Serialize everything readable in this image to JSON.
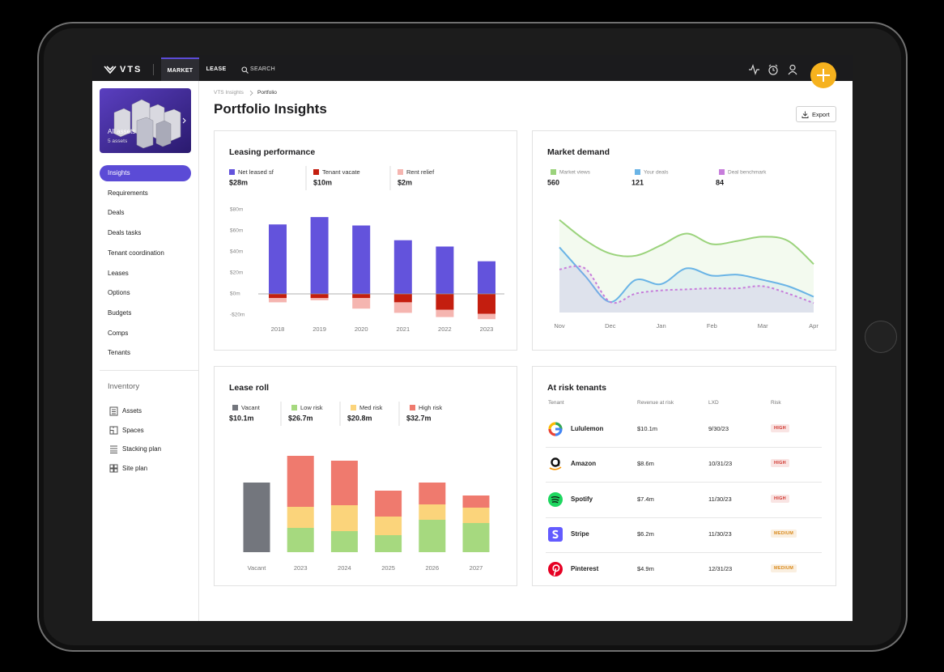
{
  "top_nav": {
    "brand": "VTS",
    "tabs": [
      "MARKET",
      "LEASE"
    ],
    "search": "SEARCH"
  },
  "sidebar": {
    "asset_card": {
      "title": "All assets",
      "subtitle": "5 assets"
    },
    "nav": [
      "Insights",
      "Requirements",
      "Deals",
      "Deals tasks",
      "Tenant coordination",
      "Leases",
      "Options",
      "Budgets",
      "Comps",
      "Tenants"
    ],
    "inventory": {
      "title": "Inventory",
      "items": [
        "Assets",
        "Spaces",
        "Stacking plan",
        "Site plan"
      ]
    }
  },
  "breadcrumb": [
    "VTS Insights",
    "Portfolio"
  ],
  "page_title": "Portfolio Insights",
  "export": "Export",
  "chart_data": [
    {
      "type": "bar",
      "stacked": true,
      "title": "Leasing performance",
      "categories": [
        "2018",
        "2019",
        "2020",
        "2021",
        "2022",
        "2023"
      ],
      "series": [
        {
          "name": "Net leased sf",
          "color": "#6353dc",
          "total": "$28m",
          "values": [
            66,
            73,
            65,
            51,
            45,
            31
          ]
        },
        {
          "name": "Tenant vacate",
          "color": "#c41e0f",
          "total": "$10m",
          "values": [
            -4,
            -4,
            -4,
            -8,
            -15,
            -19
          ]
        },
        {
          "name": "Rent relief",
          "color": "#f5b5b0",
          "total": "$2m",
          "values": [
            -4,
            -2,
            -10,
            -10,
            -7,
            -5
          ]
        }
      ],
      "ylim": [
        -25,
        85
      ],
      "yticks": [
        {
          "value": 80,
          "label": "$80m"
        },
        {
          "value": 60,
          "label": "$60m"
        },
        {
          "value": 40,
          "label": "$40m"
        },
        {
          "value": 20,
          "label": "$20m"
        },
        {
          "value": 0,
          "label": "$0m"
        },
        {
          "value": -20,
          "label": "-$20m"
        }
      ]
    },
    {
      "type": "line",
      "title": "Market demand",
      "categories": [
        "Nov",
        null,
        "Dec",
        null,
        "Jan",
        null,
        "Feb",
        null,
        "Mar",
        null,
        "Apr"
      ],
      "series": [
        {
          "name": "Market views",
          "color": "#9bd37c",
          "total": 560,
          "values": [
            88,
            69,
            56,
            54,
            64,
            75,
            65,
            68,
            72,
            68,
            46
          ]
        },
        {
          "name": "Your deals",
          "color": "#6ab4e6",
          "total": 121,
          "values": [
            62,
            35,
            10,
            31,
            27,
            42,
            35,
            36,
            31,
            25,
            15
          ]
        },
        {
          "name": "Deal benchmark",
          "color": "#c77ddb",
          "total": 84,
          "dashed": true,
          "values": [
            41,
            42,
            10,
            18,
            21,
            22,
            23,
            23,
            25,
            18,
            9
          ]
        }
      ],
      "ylim": [
        0,
        100
      ]
    },
    {
      "type": "bar",
      "stacked": true,
      "title": "Lease roll",
      "categories": [
        "Vacant",
        "2023",
        "2024",
        "2025",
        "2026",
        "2027"
      ],
      "series": [
        {
          "name": "Vacant",
          "color": "#73767d",
          "total": "$10.1m",
          "values": [
            86,
            null,
            null,
            null,
            null,
            null
          ]
        },
        {
          "name": "Low risk",
          "color": "#a6d97f",
          "total": "$26.7m",
          "values": [
            null,
            30,
            26,
            21,
            40,
            36
          ]
        },
        {
          "name": "Med risk",
          "color": "#fbd47b",
          "total": "$20.8m",
          "values": [
            null,
            26,
            32,
            23,
            19,
            19
          ]
        },
        {
          "name": "High risk",
          "color": "#ef7a6e",
          "total": "$32.7m",
          "values": [
            null,
            63,
            55,
            32,
            27,
            15
          ]
        }
      ],
      "ylim": [
        0,
        130
      ]
    }
  ],
  "at_risk": {
    "title": "At risk tenants",
    "columns": [
      "Tenant",
      "Revenue at risk",
      "LXD",
      "Risk"
    ],
    "rows": [
      {
        "tenant": "Lululemon",
        "revenue": "$10.1m",
        "lxd": "9/30/23",
        "risk": "HIGH",
        "risk_color": "#d0342c"
      },
      {
        "tenant": "Amazon",
        "revenue": "$8.6m",
        "lxd": "10/31/23",
        "risk": "HIGH",
        "risk_color": "#d0342c"
      },
      {
        "tenant": "Spotify",
        "revenue": "$7.4m",
        "lxd": "11/30/23",
        "risk": "HIGH",
        "risk_color": "#d0342c"
      },
      {
        "tenant": "Stripe",
        "revenue": "$6.2m",
        "lxd": "11/30/23",
        "risk": "MEDIUM",
        "risk_color": "#d9891a"
      },
      {
        "tenant": "Pinterest",
        "revenue": "$4.9m",
        "lxd": "12/31/23",
        "risk": "MEDIUM",
        "risk_color": "#d9891a"
      }
    ]
  }
}
